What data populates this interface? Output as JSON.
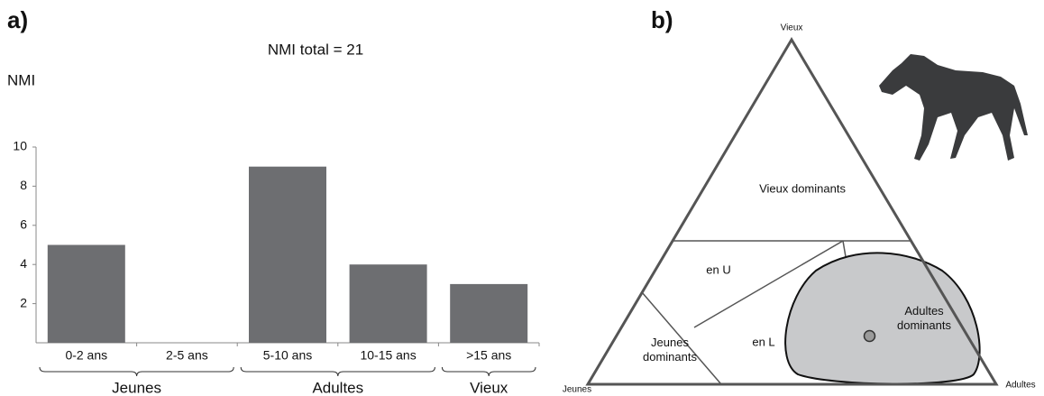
{
  "chart_data": [
    {
      "type": "bar",
      "panel": "a)",
      "title": "NMI total = 21",
      "y_label": "NMI",
      "categories": [
        "0-2 ans",
        "2-5 ans",
        "5-10 ans",
        "10-15 ans",
        ">15 ans"
      ],
      "values": [
        5,
        0,
        9,
        4,
        3
      ],
      "color": "#6d6e71",
      "ylim": [
        0,
        10
      ],
      "yticks": [
        2,
        4,
        6,
        8,
        10
      ],
      "groups": [
        {
          "label": "Jeunes",
          "span": 2
        },
        {
          "label": "Adultes",
          "span": 2
        },
        {
          "label": "Vieux",
          "span": 1
        }
      ]
    },
    {
      "type": "ternary",
      "panel": "b)",
      "axes": [
        "Jeunes",
        "Adultes",
        "Vieux"
      ],
      "regions": [
        "Vieux dominants",
        "en U",
        "en L",
        "Jeunes dominants",
        "Adultes dominants"
      ],
      "values": [
        24,
        62,
        14
      ],
      "color": "#9b9b9b"
    }
  ]
}
